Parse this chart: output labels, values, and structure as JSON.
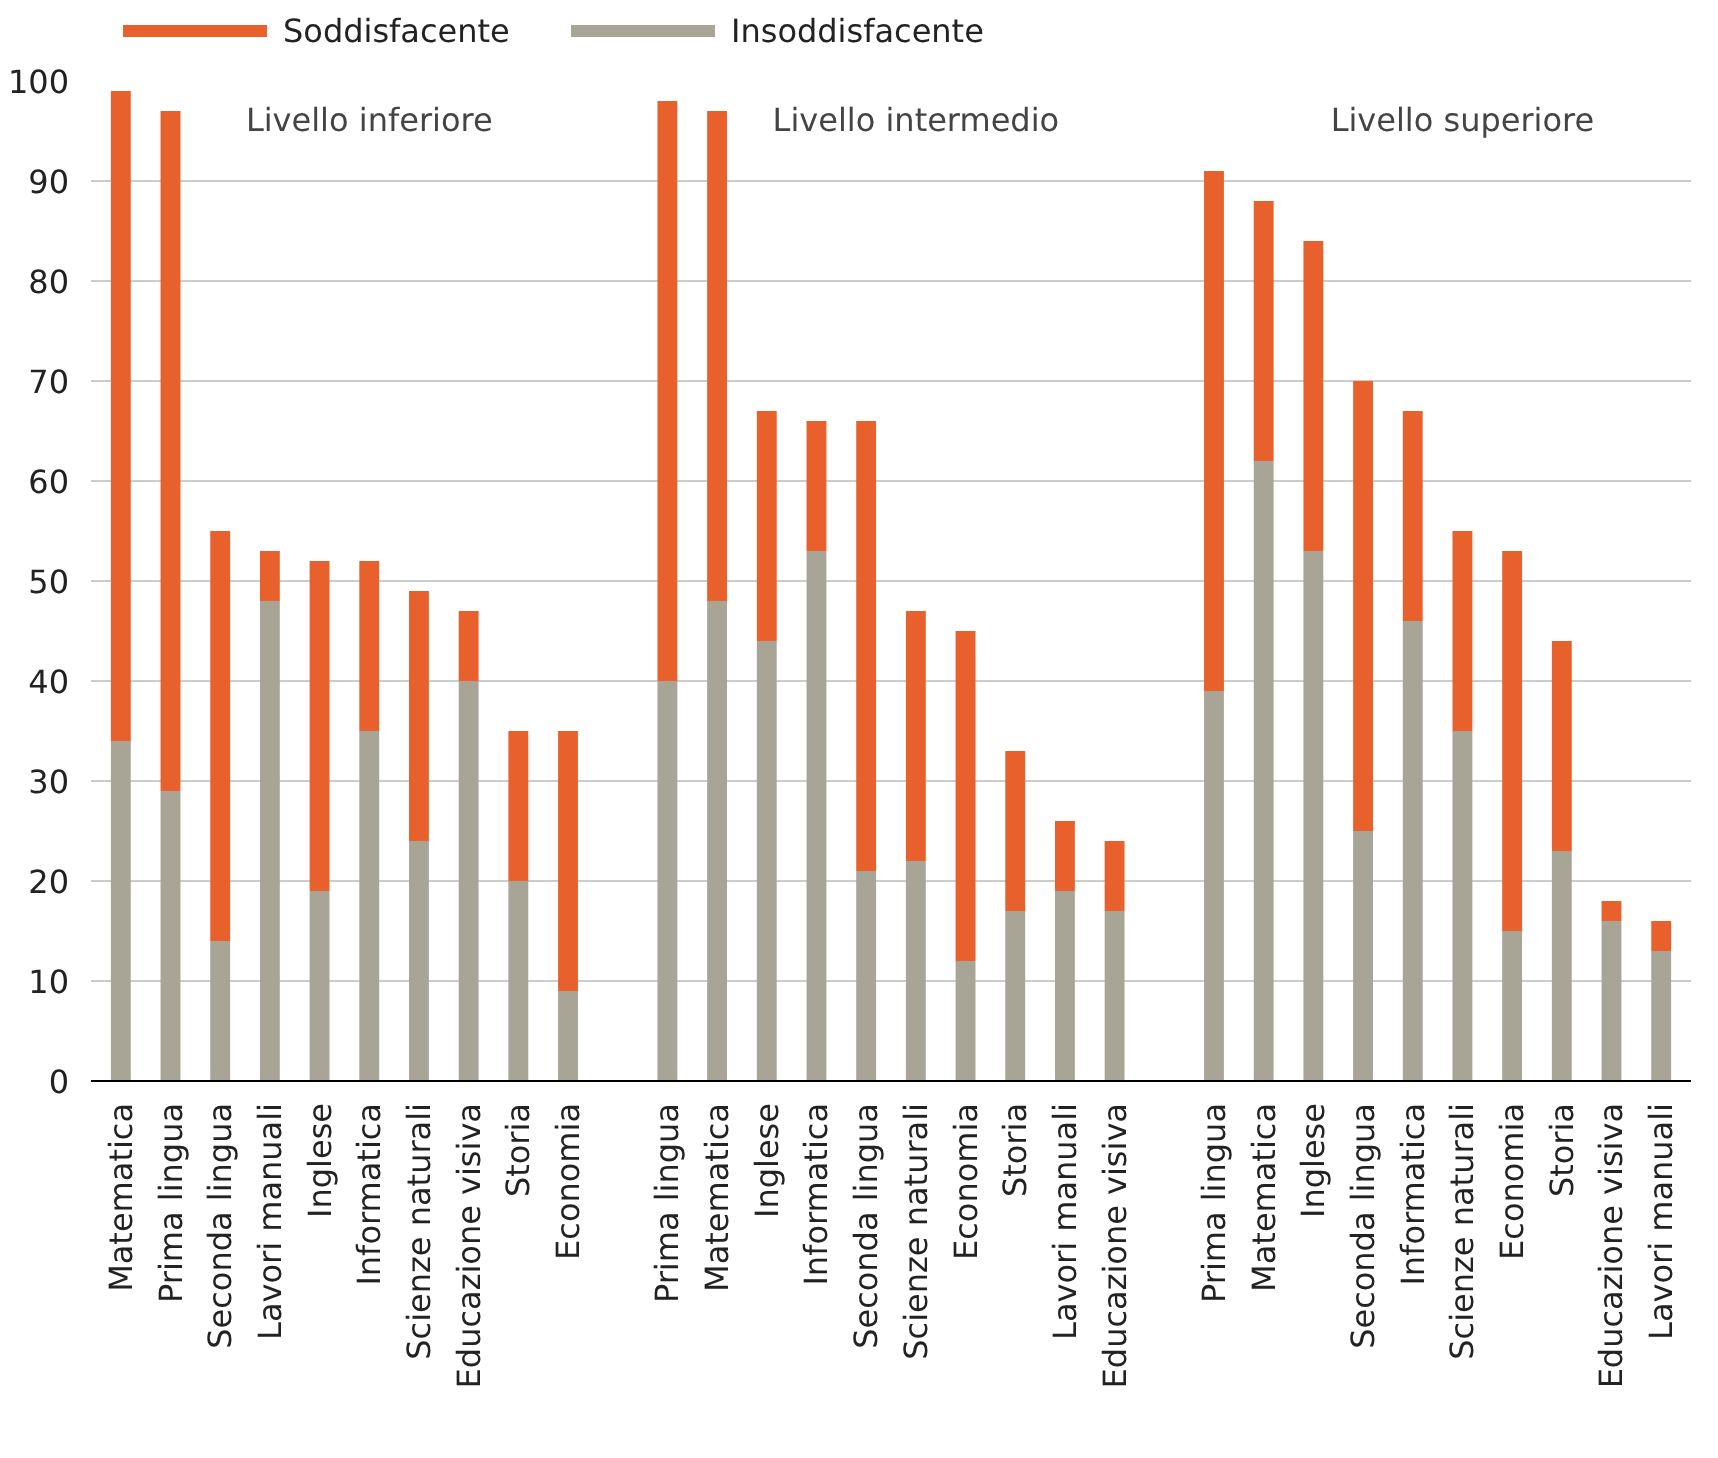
{
  "chart_data": {
    "type": "bar",
    "stacked": true,
    "categories": [
      "Matematica",
      "Prima lingua",
      "Seconda lingua",
      "Lavori manuali",
      "Inglese",
      "Informatica",
      "Scienze naturali",
      "Educazione visiva",
      "Storia",
      "Economia",
      null,
      "Prima lingua",
      "Matematica",
      "Inglese",
      "Informatica",
      "Seconda lingua",
      "Scienze naturali",
      "Economia",
      "Storia",
      "Lavori manuali",
      "Educazione visiva",
      null,
      "Prima lingua",
      "Matematica",
      "Inglese",
      "Seconda lingua",
      "Informatica",
      "Scienze naturali",
      "Economia",
      "Storia",
      "Educazione visiva",
      "Lavori manuali"
    ],
    "series": [
      {
        "name": "Insoddisfacente",
        "color": "#a8a596",
        "values": [
          34,
          29,
          14,
          48,
          19,
          35,
          24,
          40,
          20,
          9,
          null,
          40,
          48,
          44,
          53,
          21,
          22,
          12,
          17,
          19,
          17,
          null,
          39,
          62,
          53,
          25,
          46,
          35,
          15,
          23,
          16,
          13
        ]
      },
      {
        "name": "Soddisfacente",
        "color": "#e8612c",
        "values": [
          65,
          68,
          41,
          5,
          33,
          17,
          25,
          7,
          15,
          26,
          null,
          58,
          49,
          23,
          13,
          45,
          25,
          33,
          16,
          7,
          7,
          null,
          52,
          26,
          31,
          45,
          21,
          20,
          38,
          21,
          2,
          3
        ]
      }
    ],
    "ylim": [
      0,
      100
    ],
    "yticks": [
      0,
      10,
      20,
      30,
      40,
      50,
      60,
      70,
      80,
      90,
      100
    ],
    "grid": "y",
    "legend": "top left",
    "annotations": [
      "Livello inferiore",
      "Livello intermedio",
      "Livello superiore"
    ]
  }
}
